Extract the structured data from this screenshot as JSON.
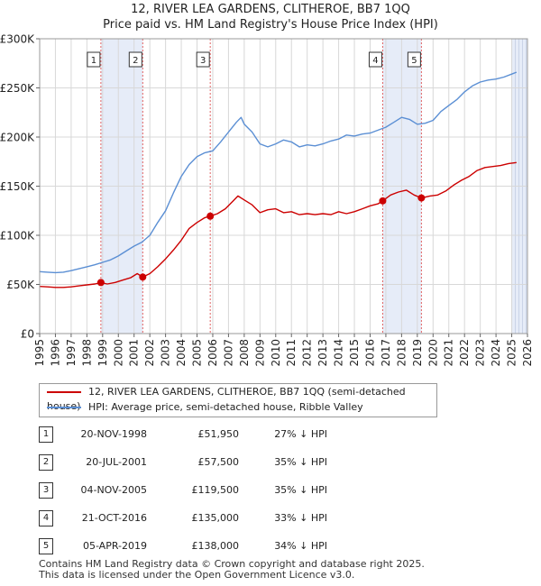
{
  "chart_data": {
    "type": "line",
    "title": "12, RIVER LEA GARDENS, CLITHEROE, BB7 1QQ",
    "subtitle": "Price paid vs. HM Land Registry's House Price Index (HPI)",
    "xlim": [
      1995,
      2026
    ],
    "ylim": [
      0,
      300000
    ],
    "x_ticks": [
      "1995",
      "1996",
      "1997",
      "1998",
      "1999",
      "2000",
      "2001",
      "2002",
      "2003",
      "2004",
      "2005",
      "2006",
      "2007",
      "2008",
      "2009",
      "2010",
      "2011",
      "2012",
      "2013",
      "2014",
      "2015",
      "2016",
      "2017",
      "2018",
      "2019",
      "2020",
      "2021",
      "2022",
      "2023",
      "2024",
      "2025",
      "2026"
    ],
    "y_ticks": [
      {
        "value": 0,
        "label": "£0"
      },
      {
        "value": 50000,
        "label": "£50K"
      },
      {
        "value": 100000,
        "label": "£100K"
      },
      {
        "value": 150000,
        "label": "£150K"
      },
      {
        "value": 200000,
        "label": "£200K"
      },
      {
        "value": 250000,
        "label": "£250K"
      },
      {
        "value": 300000,
        "label": "£300K"
      }
    ],
    "grid": true,
    "colors": {
      "property": "#cc0000",
      "hpi": "#5b8fd4",
      "shade": "#dde6f5",
      "marker_line": "#e06060"
    },
    "series": [
      {
        "name": "12, RIVER LEA GARDENS, CLITHEROE, BB7 1QQ (semi-detached house)",
        "color": "#cc0000",
        "x": [
          1995.0,
          1995.5,
          1996.0,
          1996.5,
          1997.0,
          1997.5,
          1998.0,
          1998.5,
          1998.89,
          1999.3,
          1999.8,
          2000.3,
          2000.8,
          2001.2,
          2001.55,
          2002.0,
          2002.5,
          2003.0,
          2003.5,
          2004.0,
          2004.5,
          2005.0,
          2005.5,
          2005.84,
          2006.3,
          2006.8,
          2007.3,
          2007.6,
          2008.0,
          2008.5,
          2009.0,
          2009.5,
          2010.0,
          2010.5,
          2011.0,
          2011.5,
          2012.0,
          2012.5,
          2013.0,
          2013.5,
          2014.0,
          2014.5,
          2015.0,
          2015.5,
          2016.0,
          2016.5,
          2016.8,
          2017.3,
          2017.8,
          2018.3,
          2018.8,
          2019.26,
          2019.8,
          2020.3,
          2020.8,
          2021.3,
          2021.8,
          2022.3,
          2022.8,
          2023.3,
          2023.8,
          2024.3,
          2024.8,
          2025.3
        ],
        "y": [
          48000,
          47500,
          47000,
          47000,
          47500,
          48500,
          49500,
          50500,
          51950,
          50500,
          52000,
          54500,
          57000,
          61000,
          57500,
          61000,
          68000,
          76000,
          85000,
          95000,
          107000,
          113000,
          118000,
          119500,
          122000,
          127000,
          135000,
          140000,
          136000,
          131000,
          123000,
          126000,
          127000,
          123000,
          124000,
          121000,
          122000,
          121000,
          122000,
          121000,
          124000,
          122000,
          124000,
          127000,
          130000,
          132000,
          135000,
          141000,
          144000,
          146000,
          141000,
          138000,
          140000,
          141000,
          145000,
          151000,
          156000,
          160000,
          166000,
          169000,
          170000,
          171000,
          173000,
          174000
        ]
      },
      {
        "name": "HPI: Average price, semi-detached house, Ribble Valley",
        "color": "#5b8fd4",
        "x": [
          1995.0,
          1995.5,
          1996.0,
          1996.5,
          1997.0,
          1997.5,
          1998.0,
          1998.5,
          1999.0,
          1999.5,
          2000.0,
          2000.5,
          2001.0,
          2001.5,
          2002.0,
          2002.5,
          2003.0,
          2003.5,
          2004.0,
          2004.5,
          2005.0,
          2005.5,
          2006.0,
          2006.5,
          2007.0,
          2007.5,
          2007.8,
          2008.0,
          2008.5,
          2009.0,
          2009.5,
          2010.0,
          2010.5,
          2011.0,
          2011.5,
          2012.0,
          2012.5,
          2013.0,
          2013.5,
          2014.0,
          2014.5,
          2015.0,
          2015.5,
          2016.0,
          2016.5,
          2017.0,
          2017.5,
          2018.0,
          2018.5,
          2019.0,
          2019.5,
          2020.0,
          2020.5,
          2021.0,
          2021.5,
          2022.0,
          2022.5,
          2023.0,
          2023.5,
          2024.0,
          2024.5,
          2025.0,
          2025.3
        ],
        "y": [
          63000,
          62500,
          62000,
          62500,
          64000,
          66000,
          68000,
          70000,
          72500,
          75000,
          79000,
          84000,
          89000,
          93000,
          100000,
          113000,
          125000,
          143000,
          160000,
          172000,
          180000,
          184000,
          186000,
          195000,
          205000,
          215000,
          220000,
          213000,
          205000,
          193000,
          190000,
          193000,
          197000,
          195000,
          190000,
          192000,
          191000,
          193000,
          196000,
          198000,
          202000,
          201000,
          203000,
          204000,
          207000,
          210000,
          215000,
          220000,
          218000,
          213000,
          214000,
          217000,
          226000,
          232000,
          238000,
          246000,
          252000,
          256000,
          258000,
          259000,
          261000,
          264000,
          266000
        ]
      }
    ],
    "sales": [
      {
        "num": "1",
        "x": 1998.89,
        "y": 51950
      },
      {
        "num": "2",
        "x": 2001.55,
        "y": 57500
      },
      {
        "num": "3",
        "x": 2005.84,
        "y": 119500
      },
      {
        "num": "4",
        "x": 2016.8,
        "y": 135000
      },
      {
        "num": "5",
        "x": 2019.26,
        "y": 138000
      }
    ],
    "shaded_ranges": [
      [
        1998.89,
        2001.55
      ],
      [
        2016.8,
        2019.26
      ],
      [
        2025.0,
        2026.0
      ]
    ]
  },
  "legend": {
    "property_label": "12, RIVER LEA GARDENS, CLITHEROE, BB7 1QQ (semi-detached house)",
    "hpi_label": "HPI: Average price, semi-detached house, Ribble Valley"
  },
  "table": [
    {
      "num": "1",
      "date": "20-NOV-1998",
      "price": "£51,950",
      "hpi": "27% ↓ HPI"
    },
    {
      "num": "2",
      "date": "20-JUL-2001",
      "price": "£57,500",
      "hpi": "35% ↓ HPI"
    },
    {
      "num": "3",
      "date": "04-NOV-2005",
      "price": "£119,500",
      "hpi": "35% ↓ HPI"
    },
    {
      "num": "4",
      "date": "21-OCT-2016",
      "price": "£135,000",
      "hpi": "33% ↓ HPI"
    },
    {
      "num": "5",
      "date": "05-APR-2019",
      "price": "£138,000",
      "hpi": "34% ↓ HPI"
    }
  ],
  "footer": {
    "line1": "Contains HM Land Registry data © Crown copyright and database right 2025.",
    "line2": "This data is licensed under the Open Government Licence v3.0."
  }
}
